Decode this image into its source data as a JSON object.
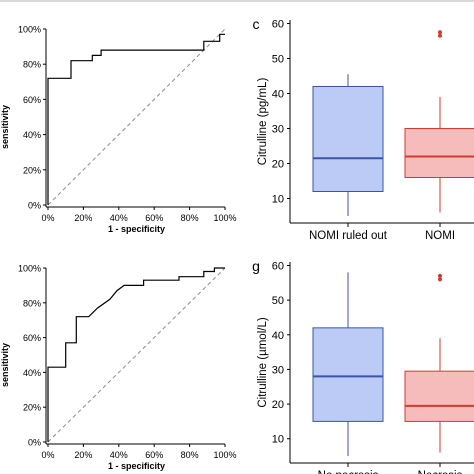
{
  "chart_data": [
    {
      "type": "line",
      "panel_label": "",
      "xlabel": "1 - specificity",
      "ylabel": "sensitivity",
      "x_ticks": [
        "0%",
        "20%",
        "40%",
        "60%",
        "80%",
        "100%"
      ],
      "y_ticks": [
        "0%",
        "20%",
        "40%",
        "60%",
        "80%",
        "100%"
      ],
      "xlim": [
        0,
        100
      ],
      "ylim": [
        0,
        100
      ],
      "reference_line": "dashed diagonal",
      "series": [
        {
          "x": [
            0,
            0,
            10,
            13,
            13,
            25,
            25,
            30,
            30,
            37,
            37,
            88,
            88,
            97,
            97,
            100
          ],
          "y": [
            0,
            72,
            72,
            72,
            82,
            82,
            85,
            85,
            88,
            88,
            88,
            88,
            93,
            93,
            97,
            97
          ]
        }
      ]
    },
    {
      "type": "box",
      "panel_label": "c",
      "ylabel": "Citrulline (pg/mL)",
      "categories": [
        "NOMI ruled out",
        "NOMI"
      ],
      "y_ticks": [
        10,
        20,
        30,
        40,
        50,
        60
      ],
      "ylim": [
        3,
        61
      ],
      "colors": {
        "fill": [
          "#bccbf5",
          "#f6bcbc"
        ],
        "stroke": [
          "#3b55a6",
          "#d33a2c"
        ]
      },
      "boxes": [
        {
          "min": 5,
          "q1": 12,
          "median": 21.5,
          "q3": 42,
          "max": 45.5,
          "outliers": []
        },
        {
          "min": 6,
          "q1": 16,
          "median": 22,
          "q3": 30,
          "max": 39,
          "outliers": [
            56.5,
            57.5
          ]
        }
      ]
    },
    {
      "type": "line",
      "panel_label": "",
      "xlabel": "1 - specificity",
      "ylabel": "sensitivity",
      "x_ticks": [
        "0%",
        "20%",
        "40%",
        "60%",
        "80%",
        "100%"
      ],
      "y_ticks": [
        "0%",
        "20%",
        "40%",
        "60%",
        "80%",
        "100%"
      ],
      "xlim": [
        0,
        100
      ],
      "ylim": [
        0,
        100
      ],
      "reference_line": "dashed diagonal",
      "series": [
        {
          "x": [
            0,
            0,
            10,
            10,
            16,
            16,
            23,
            23,
            28,
            28,
            35,
            35,
            39,
            39,
            43,
            43,
            54,
            54,
            74,
            74,
            88,
            88,
            94,
            94,
            100
          ],
          "y": [
            0,
            43,
            43,
            57,
            57,
            72,
            72,
            72,
            77,
            77,
            82,
            82,
            87,
            87,
            90,
            90,
            90,
            93,
            93,
            95,
            95,
            98,
            98,
            100,
            100
          ]
        }
      ]
    },
    {
      "type": "box",
      "panel_label": "g",
      "ylabel": "Citrulline (µmol/L)",
      "categories": [
        "No necrosis",
        "Necrosis"
      ],
      "y_ticks": [
        10,
        20,
        30,
        40,
        50,
        60
      ],
      "ylim": [
        3,
        61
      ],
      "colors": {
        "fill": [
          "#bccbf5",
          "#f6bcbc"
        ],
        "stroke": [
          "#3b55a6",
          "#d33a2c"
        ]
      },
      "boxes": [
        {
          "min": 5,
          "q1": 15,
          "median": 28,
          "q3": 42,
          "max": 58,
          "outliers": []
        },
        {
          "min": 6,
          "q1": 15,
          "median": 19.5,
          "q3": 29.5,
          "max": 39,
          "outliers": [
            56,
            57
          ]
        }
      ]
    }
  ]
}
